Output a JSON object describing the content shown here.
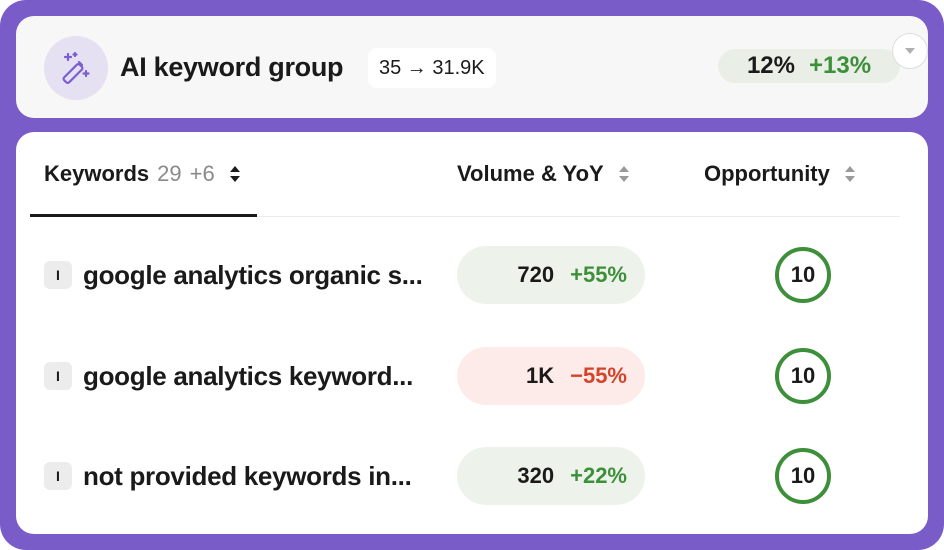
{
  "header": {
    "icon": "magic-wand-icon",
    "title": "AI keyword group",
    "range_text": "35 → 31.9K",
    "share_pct": "12%",
    "share_delta": "+13%"
  },
  "table": {
    "columns": {
      "keywords": {
        "label": "Keywords",
        "count": "29",
        "added": "+6"
      },
      "volume": {
        "label": "Volume & YoY"
      },
      "opportunity": {
        "label": "Opportunity"
      }
    },
    "rows": [
      {
        "intent": "I",
        "keyword": "google analytics organic s...",
        "volume": "720",
        "yoy": "+55%",
        "trend": "up",
        "opportunity": "10"
      },
      {
        "intent": "I",
        "keyword": "google analytics keyword...",
        "volume": "1K",
        "yoy": "−55%",
        "trend": "down",
        "opportunity": "10"
      },
      {
        "intent": "I",
        "keyword": "not provided keywords in...",
        "volume": "320",
        "yoy": "+22%",
        "trend": "up",
        "opportunity": "10"
      }
    ]
  },
  "colors": {
    "frame": "#7a5cc9",
    "positive": "#3d8f3a",
    "negative": "#d4432a",
    "positive_bg": "#edf3eb",
    "negative_bg": "#fcebe8"
  }
}
